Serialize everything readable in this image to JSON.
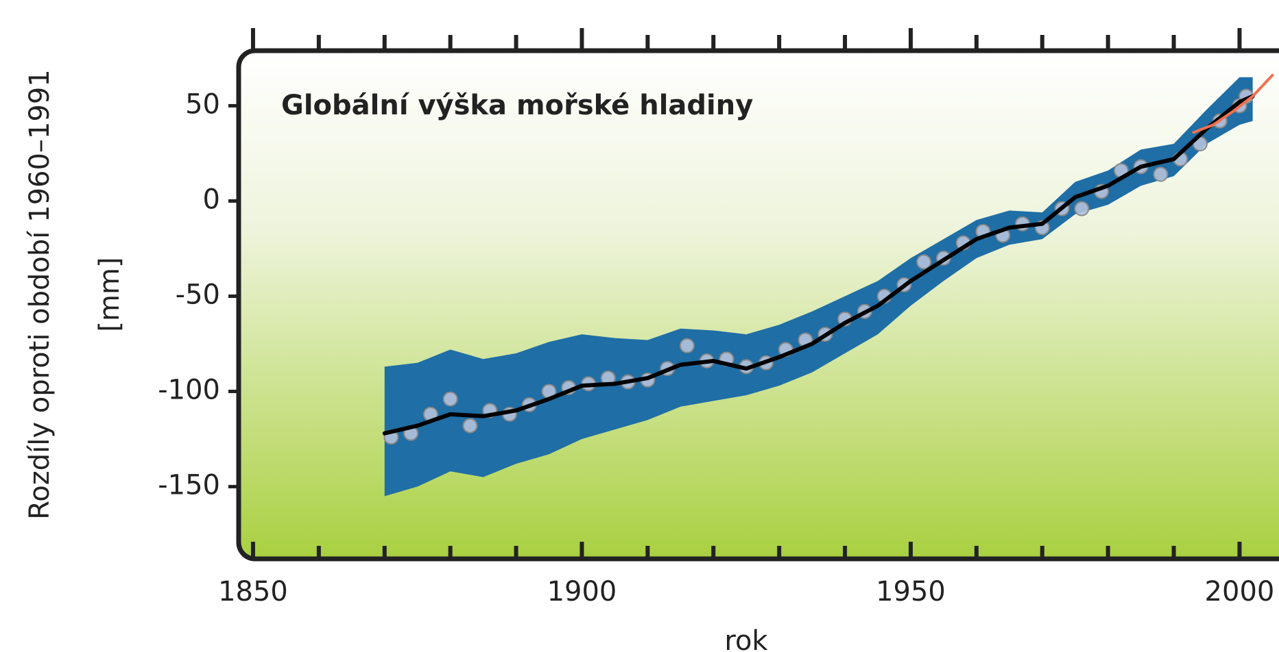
{
  "chart_data": {
    "type": "line",
    "title": "Globální výška mořské hladiny",
    "ylabel": [
      "Rozdíly oproti období 1960–1991",
      "[mm]"
    ],
    "xlabel": "rok",
    "xlim": [
      1847.5,
      2006
    ],
    "ylim": [
      -189,
      80
    ],
    "xticks": [
      1850,
      1900,
      1950,
      2000
    ],
    "xminorticks": [
      1860,
      1870,
      1880,
      1890,
      1910,
      1920,
      1930,
      1940,
      1960,
      1970,
      1980,
      1990
    ],
    "yticks": [
      50,
      0,
      -50,
      -100,
      -150
    ],
    "band": {
      "color": "#1f6ea6",
      "x": [
        1870,
        1875,
        1880,
        1885,
        1890,
        1895,
        1900,
        1905,
        1910,
        1915,
        1920,
        1925,
        1930,
        1935,
        1940,
        1945,
        1950,
        1955,
        1960,
        1965,
        1970,
        1975,
        1980,
        1985,
        1990,
        1995,
        2000,
        2002
      ],
      "upper": [
        -87,
        -85,
        -78,
        -83,
        -80,
        -74,
        -70,
        -72,
        -73,
        -67,
        -68,
        -70,
        -65,
        -58,
        -50,
        -42,
        -30,
        -20,
        -10,
        -5,
        -6,
        10,
        16,
        27,
        30,
        48,
        65,
        65
      ],
      "lower": [
        -155,
        -150,
        -142,
        -145,
        -138,
        -133,
        -125,
        -120,
        -115,
        -108,
        -105,
        -102,
        -97,
        -90,
        -80,
        -70,
        -55,
        -42,
        -30,
        -23,
        -20,
        -7,
        -2,
        8,
        13,
        30,
        40,
        42
      ]
    },
    "smooth": {
      "color": "#000000",
      "x": [
        1870,
        1875,
        1880,
        1885,
        1890,
        1895,
        1900,
        1905,
        1910,
        1915,
        1920,
        1925,
        1930,
        1935,
        1940,
        1945,
        1950,
        1955,
        1960,
        1965,
        1970,
        1975,
        1980,
        1985,
        1990,
        1995,
        2000,
        2002
      ],
      "values": [
        -122,
        -118,
        -112,
        -113,
        -110,
        -104,
        -97,
        -96,
        -93,
        -86,
        -84,
        -88,
        -82,
        -75,
        -64,
        -55,
        -42,
        -31,
        -20,
        -14,
        -12,
        2,
        8,
        18,
        22,
        38,
        52,
        55
      ]
    },
    "points": {
      "color": "#b4c2dc",
      "x": [
        1871,
        1874,
        1877,
        1880,
        1883,
        1886,
        1889,
        1892,
        1895,
        1898,
        1901,
        1904,
        1907,
        1910,
        1913,
        1916,
        1919,
        1922,
        1925,
        1928,
        1931,
        1934,
        1937,
        1940,
        1943,
        1946,
        1949,
        1952,
        1955,
        1958,
        1961,
        1964,
        1967,
        1970,
        1973,
        1976,
        1979,
        1982,
        1985,
        1988,
        1991,
        1994,
        1997,
        2000,
        2001
      ],
      "values": [
        -124,
        -122,
        -112,
        -104,
        -118,
        -110,
        -112,
        -107,
        -100,
        -98,
        -96,
        -93,
        -95,
        -94,
        -88,
        -76,
        -84,
        -83,
        -87,
        -85,
        -78,
        -73,
        -70,
        -62,
        -58,
        -50,
        -44,
        -32,
        -30,
        -22,
        -16,
        -18,
        -12,
        -14,
        -4,
        -4,
        5,
        16,
        18,
        14,
        22,
        30,
        42,
        50,
        55
      ]
    },
    "satellite": {
      "color": "#f07050",
      "x": [
        1993,
        1996,
        1999,
        2002,
        2005
      ],
      "values": [
        36,
        40,
        47,
        55,
        66
      ]
    }
  }
}
